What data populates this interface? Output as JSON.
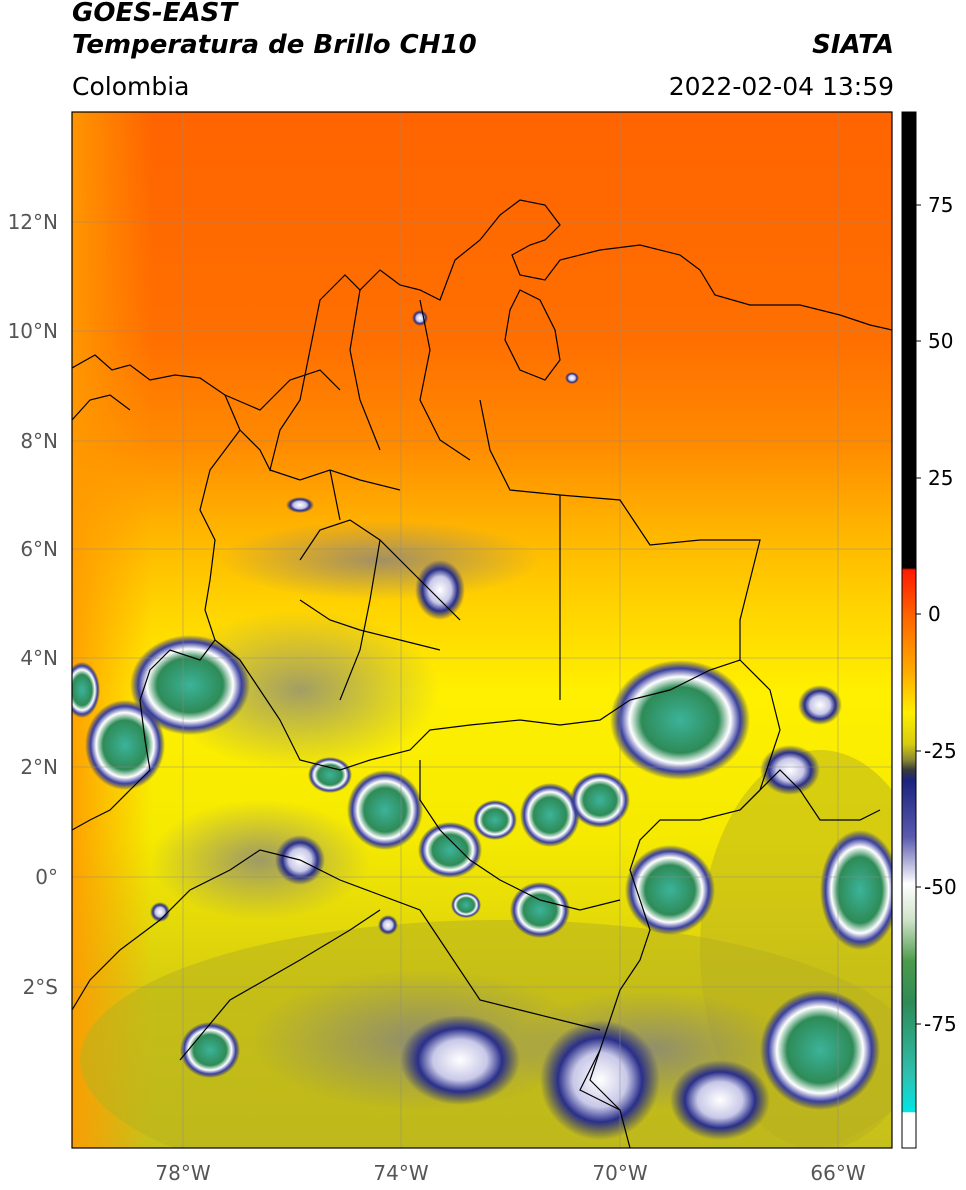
{
  "header": {
    "title_line_1": "GOES-EAST",
    "title_line_2": "Temperatura de Brillo CH10",
    "source": "SIATA",
    "region": "Colombia",
    "datetime": "2022-02-04 13:59"
  },
  "map": {
    "lat_labels": [
      "12°N",
      "10°N",
      "8°N",
      "6°N",
      "4°N",
      "2°N",
      "0°",
      "2°S"
    ],
    "lon_labels": [
      "78°W",
      "74°W",
      "70°W",
      "66°W"
    ]
  },
  "colorbar": {
    "tick_labels": [
      "75",
      "50",
      "25",
      "0",
      "-25",
      "-50",
      "-75"
    ]
  },
  "colors": {
    "warm_orange": "#ff6a00",
    "orange": "#ff9900",
    "yellow": "#ffee00",
    "olive": "#c9c11a",
    "navy": "#1a237e",
    "white": "#ffffff",
    "green": "#2e8b57",
    "teal": "#3cb39a"
  }
}
